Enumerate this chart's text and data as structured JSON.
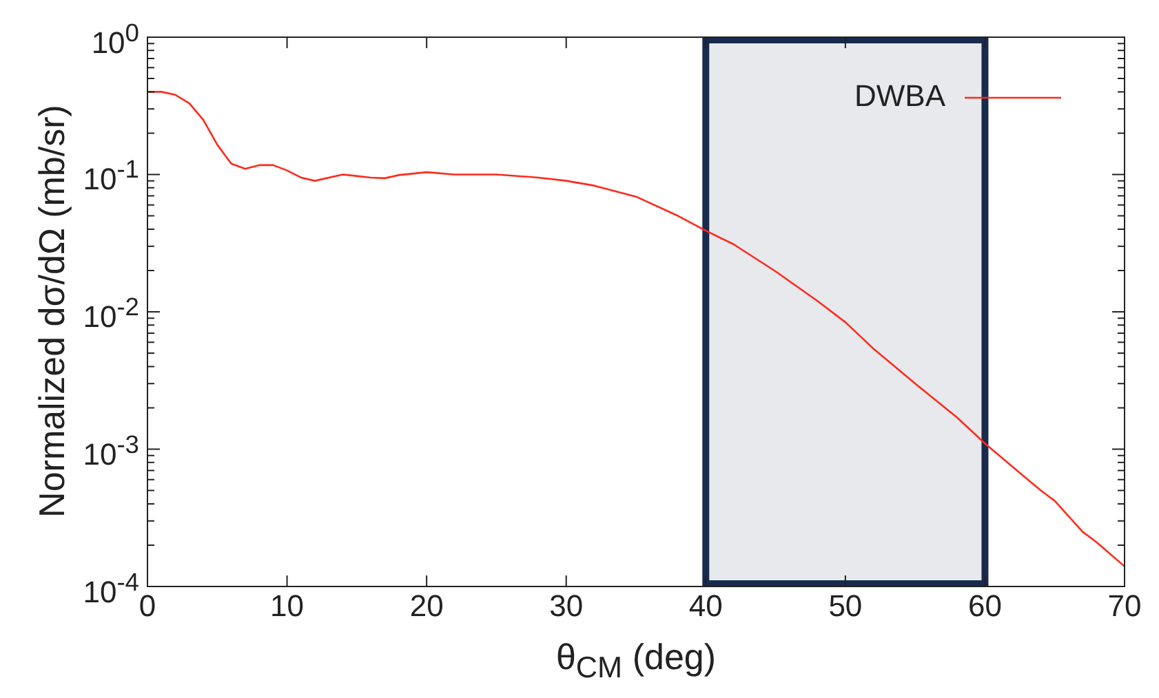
{
  "chart_data": {
    "type": "line",
    "xlabel": "θ$_{CM}$ (deg)",
    "ylabel": "Normalized dσ/dΩ (mb/sr)",
    "x": [
      0,
      1,
      2,
      3,
      4,
      5,
      6,
      7,
      8,
      9,
      10,
      11,
      12,
      14,
      16,
      17,
      18,
      20,
      22,
      24,
      25,
      28,
      30,
      32,
      35,
      38,
      40,
      42,
      45,
      48,
      50,
      52,
      55,
      58,
      60,
      62,
      64,
      65,
      67,
      68,
      70
    ],
    "series": [
      {
        "name": "DWBA",
        "color": "#ff2a1a",
        "values": [
          0.4,
          0.4,
          0.38,
          0.33,
          0.25,
          0.165,
          0.12,
          0.11,
          0.117,
          0.117,
          0.107,
          0.095,
          0.09,
          0.1,
          0.095,
          0.094,
          0.099,
          0.104,
          0.1,
          0.1,
          0.1,
          0.095,
          0.09,
          0.083,
          0.069,
          0.05,
          0.039,
          0.031,
          0.0197,
          0.012,
          0.0084,
          0.0054,
          0.003,
          0.0017,
          0.0011,
          0.00074,
          0.0005,
          0.00042,
          0.00025,
          0.00021,
          0.00014
        ]
      }
    ],
    "log": "y",
    "xlim": [
      0,
      70
    ],
    "ylim": [
      0.0001,
      1
    ],
    "xticks": [
      0,
      10,
      20,
      30,
      40,
      50,
      60,
      70
    ],
    "yticks": [
      {
        "value": 0.0001,
        "label": "10$^{-4}$"
      },
      {
        "value": 0.0002,
        "label": null
      },
      {
        "value": 0.0003,
        "label": null
      },
      {
        "value": 0.0004,
        "label": null
      },
      {
        "value": 0.0005,
        "label": null
      },
      {
        "value": 0.0006,
        "label": null
      },
      {
        "value": 0.0007,
        "label": null
      },
      {
        "value": 0.0008,
        "label": null
      },
      {
        "value": 0.0009,
        "label": null
      },
      {
        "value": 0.001,
        "label": "10$^{-3}$"
      },
      {
        "value": 0.002,
        "label": null
      },
      {
        "value": 0.003,
        "label": null
      },
      {
        "value": 0.004,
        "label": null
      },
      {
        "value": 0.005,
        "label": null
      },
      {
        "value": 0.006,
        "label": null
      },
      {
        "value": 0.007,
        "label": null
      },
      {
        "value": 0.008,
        "label": null
      },
      {
        "value": 0.009,
        "label": null
      },
      {
        "value": 0.01,
        "label": "10$^{-2}$"
      },
      {
        "value": 0.02,
        "label": null
      },
      {
        "value": 0.03,
        "label": null
      },
      {
        "value": 0.04,
        "label": null
      },
      {
        "value": 0.05,
        "label": null
      },
      {
        "value": 0.06,
        "label": null
      },
      {
        "value": 0.07,
        "label": null
      },
      {
        "value": 0.08,
        "label": null
      },
      {
        "value": 0.09,
        "label": null
      },
      {
        "value": 0.1,
        "label": "10$^{-1}$"
      },
      {
        "value": 0.2,
        "label": null
      },
      {
        "value": 0.3,
        "label": null
      },
      {
        "value": 0.4,
        "label": null
      },
      {
        "value": 0.5,
        "label": null
      },
      {
        "value": 0.6,
        "label": null
      },
      {
        "value": 0.7,
        "label": null
      },
      {
        "value": 0.8,
        "label": null
      },
      {
        "value": 0.9,
        "label": null
      },
      {
        "value": 1,
        "label": "10$^{0}$"
      }
    ],
    "bands": [
      {
        "axis": "x",
        "from": 40,
        "to": 60,
        "color": "#182a4d"
      }
    ],
    "legend": "top right",
    "grid": false,
    "marker": "none",
    "line_style": "solid"
  }
}
